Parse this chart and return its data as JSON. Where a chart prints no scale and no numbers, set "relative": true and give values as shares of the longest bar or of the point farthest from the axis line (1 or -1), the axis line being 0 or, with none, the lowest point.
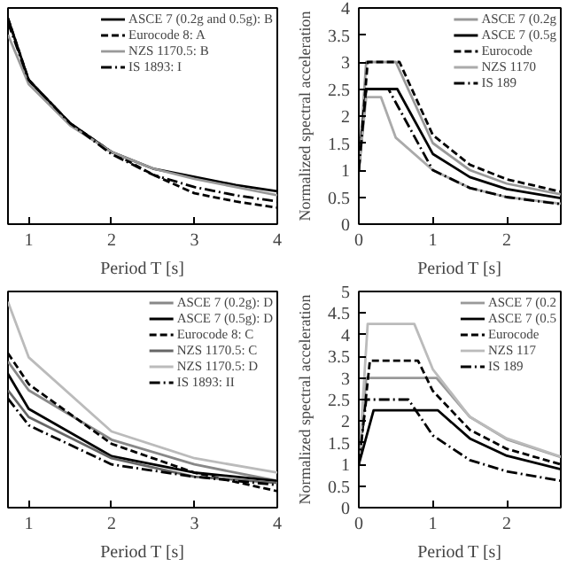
{
  "chart_data": [
    {
      "type": "line",
      "relative": true,
      "xlabel": "Period T [s]",
      "x": [
        0.75,
        1,
        1.5,
        2,
        2.5,
        3,
        3.5,
        4
      ],
      "xlim": [
        0.75,
        4
      ],
      "xticks": [
        1,
        2,
        3,
        4
      ],
      "tick_labels": "x",
      "legend": "top right",
      "series": [
        {
          "name": "ASCE 7 (0.2g and 0.5g): B",
          "color": "#000000",
          "line_style": "solid",
          "values": [
            1.0,
            0.7,
            0.49,
            0.35,
            0.27,
            0.23,
            0.19,
            0.16
          ]
        },
        {
          "name": "Eurocode 8: A",
          "color": "#000000",
          "line_style": "dashed",
          "values": [
            1.0,
            0.7,
            0.49,
            0.35,
            0.24,
            0.15,
            0.11,
            0.08
          ]
        },
        {
          "name": "NZS 1170.5: B",
          "color": "#999999",
          "line_style": "solid",
          "values": [
            0.92,
            0.68,
            0.48,
            0.35,
            0.27,
            0.22,
            0.18,
            0.14
          ]
        },
        {
          "name": "IS 1893: I",
          "color": "#000000",
          "line_style": "dashdot",
          "values": [
            0.98,
            0.7,
            0.49,
            0.34,
            0.24,
            0.18,
            0.14,
            0.11
          ]
        }
      ]
    },
    {
      "type": "line",
      "xlabel": "Period T [s]",
      "ylabel": "Normalized spectral acceleration",
      "xlim": [
        0,
        2.73
      ],
      "xticks": [
        0,
        1,
        2
      ],
      "ylim": [
        0,
        4
      ],
      "yticks": [
        0,
        0.5,
        1,
        1.5,
        2,
        2.5,
        3,
        3.5,
        4
      ],
      "legend": "top right",
      "series": [
        {
          "name": "ASCE 7 (0.2g",
          "color": "#999999",
          "line_style": "solid",
          "x": [
            0,
            0.1,
            0.5,
            1,
            1.5,
            2,
            2.73
          ],
          "values": [
            1,
            3,
            3,
            1.5,
            1.0,
            0.75,
            0.55
          ]
        },
        {
          "name": "ASCE 7 (0.5g",
          "color": "#000000",
          "line_style": "solid",
          "x": [
            0,
            0.1,
            0.52,
            1,
            1.5,
            2,
            2.73
          ],
          "values": [
            1,
            2.5,
            2.5,
            1.3,
            0.87,
            0.65,
            0.48
          ]
        },
        {
          "name": "Eurocode",
          "color": "#000000",
          "line_style": "dashed",
          "x": [
            0,
            0.12,
            0.55,
            1,
            1.5,
            2,
            2.73
          ],
          "values": [
            1,
            3,
            3,
            1.65,
            1.1,
            0.83,
            0.6
          ]
        },
        {
          "name": "NZS 1170",
          "color": "#aaaaaa",
          "line_style": "solid",
          "x": [
            0,
            0.1,
            0.3,
            0.5,
            1,
            1.5,
            2,
            2.73
          ],
          "values": [
            1,
            2.35,
            2.35,
            1.6,
            1.0,
            0.67,
            0.5,
            0.38
          ]
        },
        {
          "name": "IS 189",
          "color": "#000000",
          "line_style": "dashdot",
          "x": [
            0,
            0.1,
            0.4,
            1,
            1.5,
            2,
            2.73
          ],
          "values": [
            1,
            2.5,
            2.5,
            1.0,
            0.67,
            0.5,
            0.37
          ]
        }
      ]
    },
    {
      "type": "line",
      "relative": true,
      "xlabel": "Period T [s]",
      "x": [
        0.75,
        1,
        2,
        3,
        4
      ],
      "xlim": [
        0.75,
        4
      ],
      "xticks": [
        1,
        2,
        3,
        4
      ],
      "tick_labels": "x",
      "legend": "top right",
      "series": [
        {
          "name": "ASCE 7 (0.2g): D",
          "color": "#888888",
          "line_style": "solid",
          "values": [
            0.71,
            0.57,
            0.33,
            0.21,
            0.13
          ]
        },
        {
          "name": "ASCE 7 (0.5g): D",
          "color": "#000000",
          "line_style": "solid",
          "values": [
            0.65,
            0.48,
            0.25,
            0.17,
            0.13
          ]
        },
        {
          "name": "Eurocode 8: C",
          "color": "#000000",
          "line_style": "dashed",
          "values": [
            0.75,
            0.6,
            0.31,
            0.17,
            0.08
          ]
        },
        {
          "name": "NZS 1170.5: C",
          "color": "#666666",
          "line_style": "solid",
          "values": [
            0.57,
            0.44,
            0.24,
            0.15,
            0.12
          ]
        },
        {
          "name": "NZS 1170.5: D",
          "color": "#bbbbbb",
          "line_style": "solid",
          "values": [
            1.0,
            0.73,
            0.37,
            0.24,
            0.17
          ]
        },
        {
          "name": "IS 1893: II",
          "color": "#000000",
          "line_style": "dashdot",
          "values": [
            0.53,
            0.4,
            0.21,
            0.15,
            0.11
          ]
        }
      ]
    },
    {
      "type": "line",
      "xlabel": "Period T [s]",
      "ylabel": "Normalized spectral acceleration",
      "xlim": [
        0,
        2.73
      ],
      "xticks": [
        0,
        1,
        2
      ],
      "ylim": [
        0,
        5
      ],
      "yticks": [
        0,
        0.5,
        1,
        1.5,
        2,
        2.5,
        3,
        3.5,
        4,
        4.5,
        5
      ],
      "legend": "top right",
      "series": [
        {
          "name": "ASCE 7 (0.2",
          "color": "#999999",
          "line_style": "solid",
          "x": [
            0,
            0.1,
            1.05,
            1.5,
            2,
            2.73
          ],
          "values": [
            1,
            3,
            3,
            2.1,
            1.58,
            1.17
          ]
        },
        {
          "name": "ASCE 7 (0.5",
          "color": "#000000",
          "line_style": "solid",
          "x": [
            0,
            0.2,
            1.07,
            1.5,
            2,
            2.73
          ],
          "values": [
            1,
            2.25,
            2.25,
            1.6,
            1.2,
            0.89
          ]
        },
        {
          "name": "Eurocode",
          "color": "#000000",
          "line_style": "dashed",
          "x": [
            0,
            0.15,
            0.8,
            1,
            1.5,
            2,
            2.73
          ],
          "values": [
            1,
            3.4,
            3.4,
            2.7,
            1.8,
            1.36,
            1.0
          ]
        },
        {
          "name": "NZS 117",
          "color": "#bbbbbb",
          "line_style": "solid",
          "x": [
            0,
            0.12,
            0.75,
            1,
            1.5,
            2,
            2.73
          ],
          "values": [
            1,
            4.25,
            4.25,
            3.2,
            2.1,
            1.6,
            1.18
          ]
        },
        {
          "name": "IS 189",
          "color": "#000000",
          "line_style": "dashdot",
          "x": [
            0,
            0.1,
            0.67,
            1,
            1.5,
            2,
            2.73
          ],
          "values": [
            1,
            2.5,
            2.5,
            1.67,
            1.1,
            0.84,
            0.62
          ]
        }
      ]
    }
  ]
}
